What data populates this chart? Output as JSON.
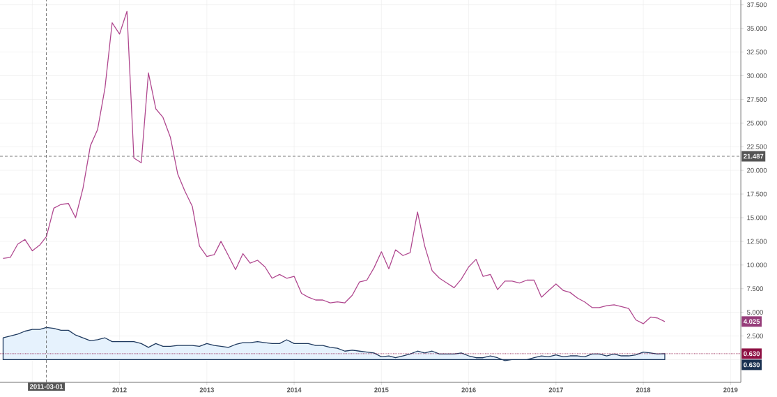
{
  "chart_data": {
    "type": "line",
    "x": [
      "2010-09-01",
      "2010-10-01",
      "2010-11-01",
      "2010-12-01",
      "2011-01-01",
      "2011-02-01",
      "2011-03-01",
      "2011-04-01",
      "2011-05-01",
      "2011-06-01",
      "2011-07-01",
      "2011-08-01",
      "2011-09-01",
      "2011-10-01",
      "2011-11-01",
      "2011-12-01",
      "2012-01-01",
      "2012-02-01",
      "2012-03-01",
      "2012-04-01",
      "2012-05-01",
      "2012-06-01",
      "2012-07-01",
      "2012-08-01",
      "2012-09-01",
      "2012-10-01",
      "2012-11-01",
      "2012-12-01",
      "2013-01-01",
      "2013-02-01",
      "2013-03-01",
      "2013-04-01",
      "2013-05-01",
      "2013-06-01",
      "2013-07-01",
      "2013-08-01",
      "2013-09-01",
      "2013-10-01",
      "2013-11-01",
      "2013-12-01",
      "2014-01-01",
      "2014-02-01",
      "2014-03-01",
      "2014-04-01",
      "2014-05-01",
      "2014-06-01",
      "2014-07-01",
      "2014-08-01",
      "2014-09-01",
      "2014-10-01",
      "2014-11-01",
      "2014-12-01",
      "2015-01-01",
      "2015-02-01",
      "2015-03-01",
      "2015-04-01",
      "2015-05-01",
      "2015-06-01",
      "2015-07-01",
      "2015-08-01",
      "2015-09-01",
      "2015-10-01",
      "2015-11-01",
      "2015-12-01",
      "2016-01-01",
      "2016-02-01",
      "2016-03-01",
      "2016-04-01",
      "2016-05-01",
      "2016-06-01",
      "2016-07-01",
      "2016-08-01",
      "2016-09-01",
      "2016-10-01",
      "2016-11-01",
      "2016-12-01",
      "2017-01-01",
      "2017-02-01",
      "2017-03-01",
      "2017-04-01",
      "2017-05-01",
      "2017-06-01",
      "2017-07-01",
      "2017-08-01",
      "2017-09-01",
      "2017-10-01",
      "2017-11-01",
      "2017-12-01",
      "2018-01-01",
      "2018-02-01",
      "2018-03-01",
      "2018-04-01"
    ],
    "series": [
      {
        "color": "#b0488f",
        "values": [
          10.7,
          10.8,
          12.2,
          12.7,
          11.5,
          12.1,
          13.0,
          16.0,
          16.4,
          16.5,
          15.0,
          18.1,
          22.6,
          24.3,
          28.7,
          35.6,
          34.4,
          36.8,
          21.3,
          20.8,
          30.3,
          26.5,
          25.6,
          23.5,
          19.6,
          17.8,
          16.2,
          12.0,
          10.9,
          11.1,
          12.5,
          11.0,
          9.5,
          11.2,
          10.2,
          10.5,
          9.8,
          8.6,
          9.0,
          8.6,
          8.8,
          7.0,
          6.6,
          6.3,
          6.3,
          6.0,
          6.1,
          6.0,
          6.8,
          8.2,
          8.4,
          9.7,
          11.4,
          9.6,
          11.6,
          11.0,
          11.3,
          15.6,
          12.0,
          9.4,
          8.6,
          8.1,
          7.6,
          8.5,
          9.8,
          10.6,
          8.8,
          9.0,
          7.4,
          8.3,
          8.3,
          8.1,
          8.4,
          8.4,
          6.6,
          7.3,
          8.0,
          7.3,
          7.1,
          6.5,
          6.1,
          5.5,
          5.5,
          5.7,
          5.8,
          5.6,
          5.4,
          4.2,
          3.8,
          4.5,
          4.4,
          4.025
        ],
        "value_labels": [
          null,
          null,
          null,
          null,
          null,
          null,
          null,
          null,
          null,
          null,
          null,
          null,
          null,
          null,
          null,
          null,
          null,
          null,
          null,
          null,
          null,
          null,
          null,
          null,
          null,
          null,
          null,
          null,
          null,
          null,
          null,
          null,
          null,
          null,
          null,
          null,
          null,
          null,
          null,
          null,
          null,
          null,
          null,
          null,
          null,
          null,
          null,
          null,
          null,
          null,
          null,
          null,
          null,
          null,
          null,
          null,
          null,
          null,
          null,
          null,
          null,
          null,
          null,
          null,
          null,
          null,
          null,
          null,
          null,
          null,
          null,
          null,
          null,
          null,
          null,
          null,
          null,
          null,
          null,
          null,
          null,
          null,
          null,
          null,
          null,
          null,
          null,
          null,
          null,
          null,
          null,
          null
        ]
      },
      {
        "type": "area",
        "color": "#1f3a5f",
        "values": [
          2.3,
          2.5,
          2.7,
          3.0,
          3.2,
          3.2,
          3.4,
          3.3,
          3.1,
          3.1,
          2.6,
          2.3,
          2.0,
          2.1,
          2.3,
          1.9,
          1.9,
          1.9,
          1.9,
          1.7,
          1.3,
          1.7,
          1.4,
          1.4,
          1.5,
          1.5,
          1.5,
          1.4,
          1.7,
          1.5,
          1.4,
          1.3,
          1.6,
          1.8,
          1.8,
          1.9,
          1.8,
          1.7,
          1.7,
          2.1,
          1.7,
          1.7,
          1.7,
          1.5,
          1.5,
          1.3,
          1.2,
          0.9,
          1.0,
          0.9,
          0.8,
          0.7,
          0.3,
          0.4,
          0.2,
          0.4,
          0.6,
          0.9,
          0.7,
          0.9,
          0.6,
          0.6,
          0.6,
          0.7,
          0.4,
          0.2,
          0.2,
          0.4,
          0.2,
          -0.1,
          0.0,
          0.0,
          0.0,
          0.2,
          0.4,
          0.3,
          0.5,
          0.3,
          0.4,
          0.4,
          0.3,
          0.6,
          0.6,
          0.4,
          0.6,
          0.4,
          0.4,
          0.5,
          0.8,
          0.7,
          0.6,
          0.63
        ],
        "value_labels": [
          null,
          null,
          null,
          null,
          null,
          null,
          null,
          null,
          null,
          null,
          null,
          null,
          null,
          null,
          null,
          null,
          null,
          null,
          null,
          null,
          null,
          null,
          null,
          null,
          null,
          null,
          null,
          null,
          null,
          null,
          null,
          null,
          null,
          null,
          null,
          null,
          null,
          null,
          null,
          null,
          null,
          null,
          null,
          null,
          null,
          null,
          null,
          null,
          null,
          null,
          null,
          null,
          null,
          null,
          null,
          null,
          null,
          null,
          null,
          null,
          null,
          null,
          null,
          null,
          null,
          null,
          null,
          null,
          null,
          null,
          null,
          null,
          null,
          null,
          null,
          null,
          null,
          null,
          null,
          null,
          null,
          null,
          null,
          null,
          null,
          null,
          null,
          null,
          null,
          null,
          null,
          null
        ]
      }
    ],
    "annotations": [
      "4.025",
      "0.630"
    ],
    "xlim": [
      "2010-08-19",
      "2019-02-13"
    ],
    "xticks": [
      {
        "value": "2011-01-01",
        "label": null
      },
      {
        "value": "2012-01-01",
        "label": "2012"
      },
      {
        "value": "2013-01-01",
        "label": "2013"
      },
      {
        "value": "2014-01-01",
        "label": "2014"
      },
      {
        "value": "2015-01-01",
        "label": "2015"
      },
      {
        "value": "2016-01-01",
        "label": "2016"
      },
      {
        "value": "2017-01-01",
        "label": "2017"
      },
      {
        "value": "2018-01-01",
        "label": "2018"
      },
      {
        "value": "2019-01-01",
        "label": "2019"
      }
    ],
    "ylim": [
      -2.4,
      38.0
    ],
    "yticks": [
      {
        "value": 0,
        "label": null
      },
      {
        "value": 2.5,
        "label": "2.500"
      },
      {
        "value": 5,
        "label": "5.000"
      },
      {
        "value": 7.5,
        "label": "7.500"
      },
      {
        "value": 10,
        "label": "10.000"
      },
      {
        "value": 12.5,
        "label": "12.500"
      },
      {
        "value": 15,
        "label": "15.000"
      },
      {
        "value": 17.5,
        "label": "17.500"
      },
      {
        "value": 20,
        "label": "20.000"
      },
      {
        "value": 22.5,
        "label": "22.500"
      },
      {
        "value": 25,
        "label": "25.000"
      },
      {
        "value": 27.5,
        "label": "27.500"
      },
      {
        "value": 30,
        "label": "30.000"
      },
      {
        "value": 32.5,
        "label": "32.500"
      },
      {
        "value": 35,
        "label": "35.000"
      },
      {
        "value": 37.5,
        "label": "37.500"
      }
    ],
    "grid": true,
    "ref_lines": [
      {
        "axis": "y",
        "value": 21.487,
        "label": "21.487",
        "color": "#555555",
        "line_style": "dashed"
      },
      {
        "axis": "x",
        "value": "2011-03-01",
        "label": "2011-03-01",
        "color": "#555555",
        "line_style": "dashed"
      },
      {
        "axis": "y",
        "value": 0.63,
        "label": "0.630",
        "color": "#8e1144",
        "line_style": "dotted"
      }
    ]
  }
}
